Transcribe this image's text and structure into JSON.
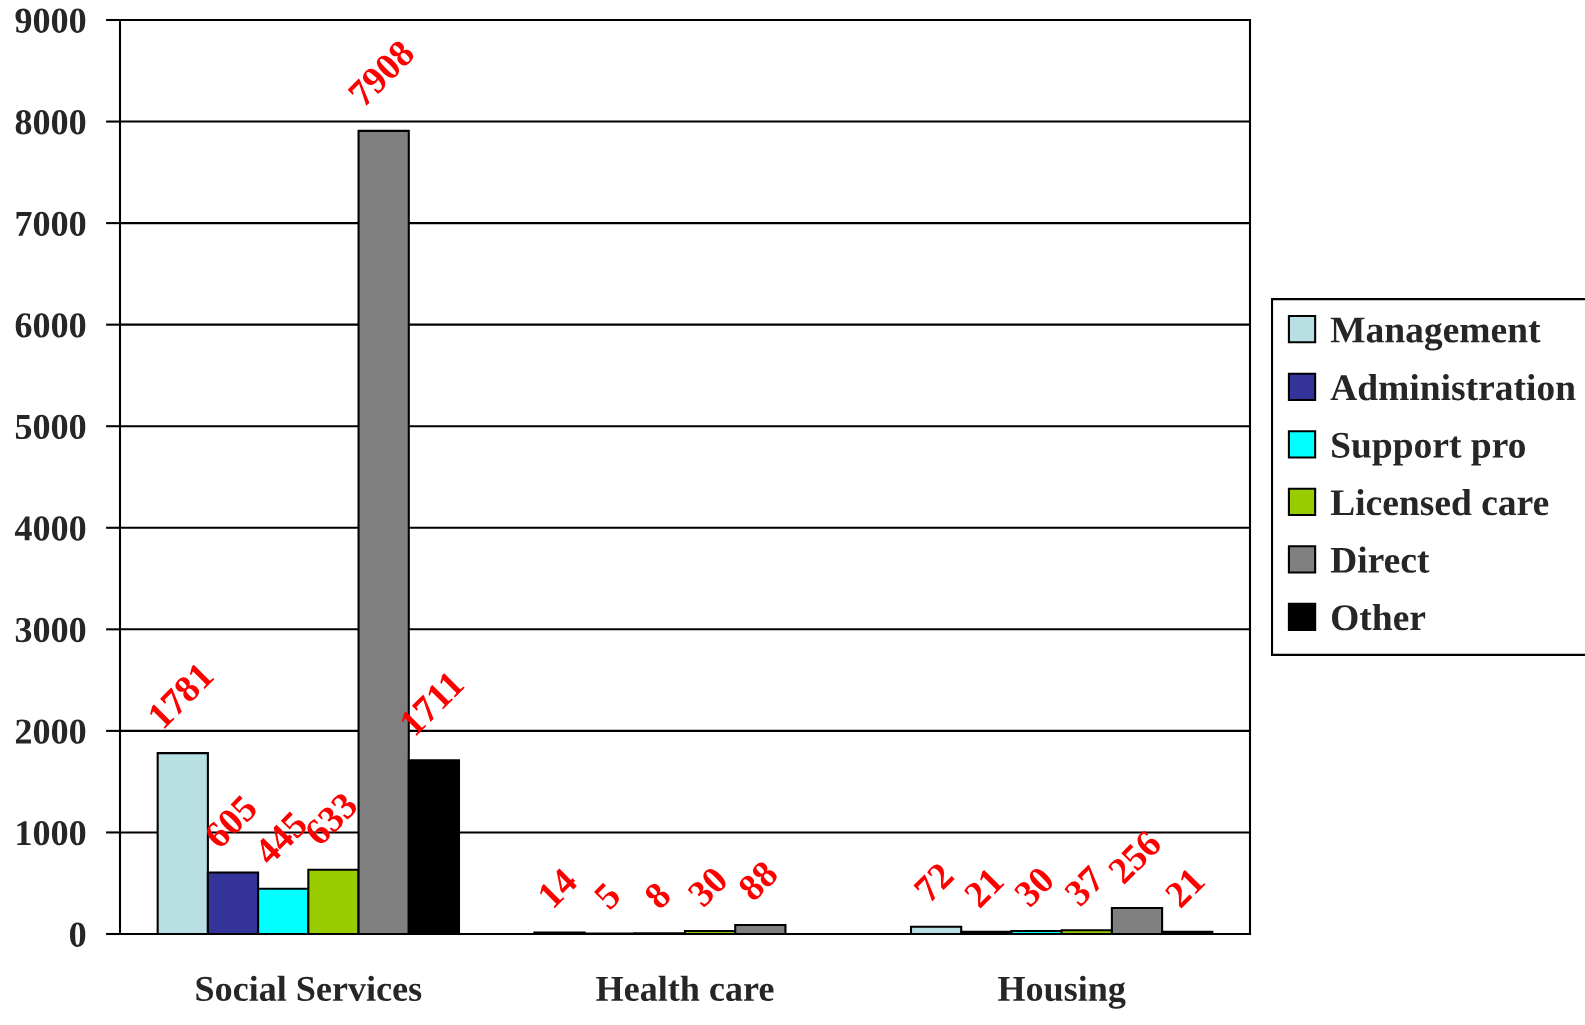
{
  "chart_data": {
    "type": "bar",
    "categories": [
      "Social Services",
      "Health care",
      "Housing"
    ],
    "series": [
      {
        "name": "Management",
        "color": "#b8dfe2",
        "values": [
          1781,
          14,
          72
        ]
      },
      {
        "name": "Administration",
        "color": "#333399",
        "values": [
          605,
          5,
          21
        ]
      },
      {
        "name": "Support pro",
        "color": "#00ffff",
        "values": [
          445,
          8,
          30
        ]
      },
      {
        "name": "Licensed care",
        "color": "#99cc00",
        "values": [
          633,
          30,
          37
        ]
      },
      {
        "name": "Direct",
        "color": "#808080",
        "values": [
          7908,
          88,
          256
        ]
      },
      {
        "name": "Other",
        "color": "#000000",
        "values": [
          1711,
          null,
          21
        ]
      }
    ],
    "ylim": [
      0,
      9000
    ],
    "yticks": [
      0,
      1000,
      2000,
      3000,
      4000,
      5000,
      6000,
      7000,
      8000,
      9000
    ],
    "grid": "y",
    "legend": "right",
    "data_labels": true
  }
}
